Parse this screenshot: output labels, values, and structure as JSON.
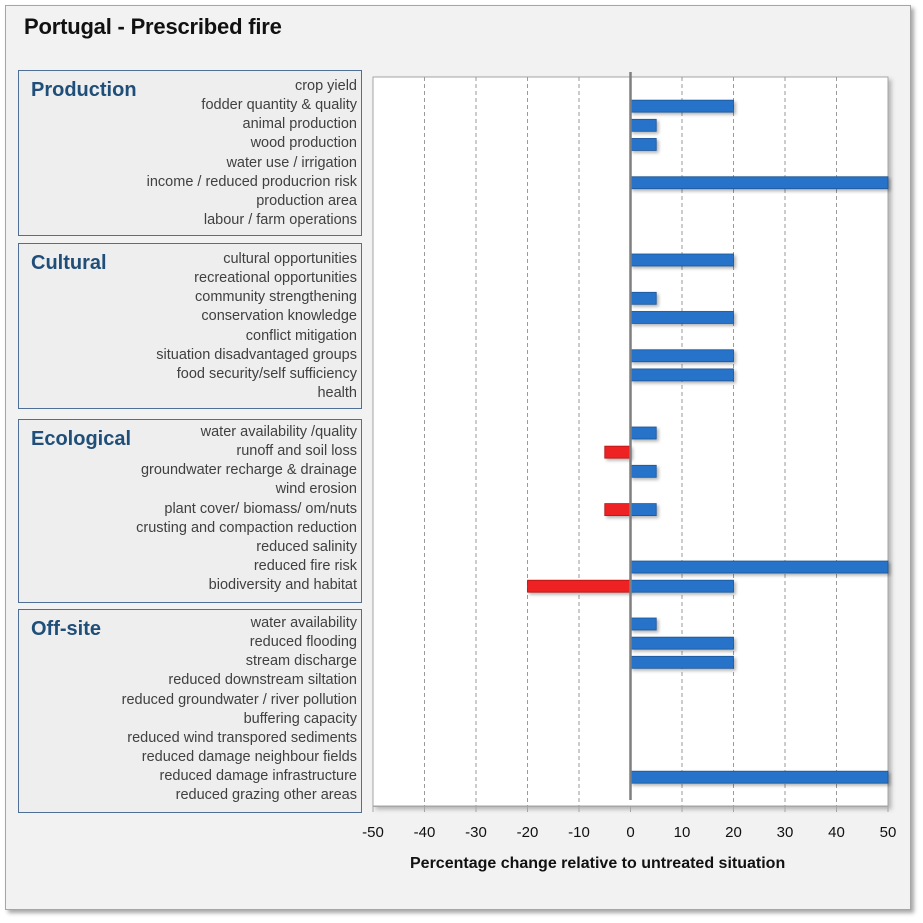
{
  "chart_data": {
    "type": "bar",
    "orientation": "horizontal",
    "title": "Portugal - Prescribed fire",
    "xlabel": "Percentage change relative to untreated situation",
    "ylabel": "",
    "xlim": [
      -50,
      50
    ],
    "xticks": [
      -50,
      -40,
      -30,
      -20,
      -10,
      0,
      10,
      20,
      30,
      40,
      50
    ],
    "grid": "vertical dashed",
    "colors": {
      "positive": "#2673c9",
      "negative": "#ee2020",
      "zero_line": "#7f7f7f",
      "group_title": "#1f4e79",
      "group_border": "#4f6f97"
    },
    "groups": [
      {
        "name": "Production",
        "items": [
          {
            "label": "crop yield",
            "negative": 0,
            "positive": 0
          },
          {
            "label": "fodder quantity & quality",
            "negative": 0,
            "positive": 20
          },
          {
            "label": "animal production",
            "negative": 0,
            "positive": 5
          },
          {
            "label": "wood production",
            "negative": 0,
            "positive": 5
          },
          {
            "label": "water use / irrigation",
            "negative": 0,
            "positive": 0
          },
          {
            "label": "income / reduced producrion risk",
            "negative": 0,
            "positive": 50
          },
          {
            "label": "production area",
            "negative": 0,
            "positive": 0
          },
          {
            "label": "labour / farm operations",
            "negative": 0,
            "positive": 0
          }
        ]
      },
      {
        "name": "Cultural",
        "items": [
          {
            "label": "cultural opportunities",
            "negative": 0,
            "positive": 20
          },
          {
            "label": "recreational opportunities",
            "negative": 0,
            "positive": 0
          },
          {
            "label": "community strengthening",
            "negative": 0,
            "positive": 5
          },
          {
            "label": "conservation knowledge",
            "negative": 0,
            "positive": 20
          },
          {
            "label": "conflict mitigation",
            "negative": 0,
            "positive": 0
          },
          {
            "label": "situation disadvantaged groups",
            "negative": 0,
            "positive": 20
          },
          {
            "label": "food security/self sufficiency",
            "negative": 0,
            "positive": 20
          },
          {
            "label": "health",
            "negative": 0,
            "positive": 0
          }
        ]
      },
      {
        "name": "Ecological",
        "items": [
          {
            "label": "water availability /quality",
            "negative": 0,
            "positive": 5
          },
          {
            "label": "runoff and soil loss",
            "negative": -5,
            "positive": 0
          },
          {
            "label": "groundwater recharge & drainage",
            "negative": 0,
            "positive": 5
          },
          {
            "label": "wind erosion",
            "negative": 0,
            "positive": 0
          },
          {
            "label": "plant cover/ biomass/ om/nuts",
            "negative": -5,
            "positive": 5
          },
          {
            "label": "crusting and compaction reduction",
            "negative": 0,
            "positive": 0
          },
          {
            "label": "reduced salinity",
            "negative": 0,
            "positive": 0
          },
          {
            "label": "reduced fire risk",
            "negative": 0,
            "positive": 50
          },
          {
            "label": "biodiversity and habitat",
            "negative": -20,
            "positive": 20
          }
        ]
      },
      {
        "name": "Off-site",
        "items": [
          {
            "label": "water availability",
            "negative": 0,
            "positive": 5
          },
          {
            "label": "reduced flooding",
            "negative": 0,
            "positive": 20
          },
          {
            "label": "stream discharge",
            "negative": 0,
            "positive": 20
          },
          {
            "label": "reduced downstream siltation",
            "negative": 0,
            "positive": 0
          },
          {
            "label": "reduced groundwater / river pollution",
            "negative": 0,
            "positive": 0
          },
          {
            "label": "buffering capacity",
            "negative": 0,
            "positive": 0
          },
          {
            "label": "reduced wind transpored sediments",
            "negative": 0,
            "positive": 0
          },
          {
            "label": "reduced damage neighbour fields",
            "negative": 0,
            "positive": 0
          },
          {
            "label": "reduced damage infrastructure",
            "negative": 0,
            "positive": 50
          },
          {
            "label": "reduced grazing other areas",
            "negative": 0,
            "positive": 0
          }
        ]
      }
    ]
  }
}
